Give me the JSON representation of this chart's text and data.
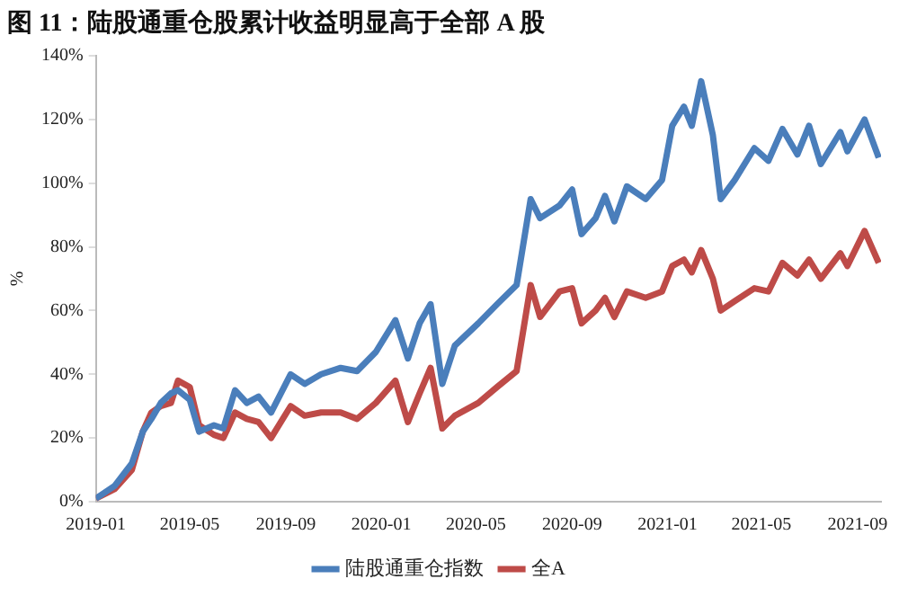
{
  "chart_data": {
    "type": "line",
    "title": "图 11：陆股通重仓股累计收益明显高于全部 A 股",
    "ylabel": "%",
    "x": [
      "2019-01-01",
      "2019-01-25",
      "2019-02-16",
      "2019-03-02",
      "2019-03-13",
      "2019-03-25",
      "2019-04-07",
      "2019-04-16",
      "2019-05-01",
      "2019-05-13",
      "2019-06-01",
      "2019-06-13",
      "2019-06-28",
      "2019-07-13",
      "2019-07-28",
      "2019-08-13",
      "2019-09-07",
      "2019-09-25",
      "2019-10-16",
      "2019-11-10",
      "2019-12-01",
      "2019-12-25",
      "2020-01-19",
      "2020-02-04",
      "2020-02-19",
      "2020-03-04",
      "2020-03-19",
      "2020-04-04",
      "2020-05-04",
      "2020-05-28",
      "2020-06-22",
      "2020-07-10",
      "2020-07-22",
      "2020-08-16",
      "2020-09-01",
      "2020-09-13",
      "2020-10-01",
      "2020-10-13",
      "2020-10-25",
      "2020-11-10",
      "2020-12-04",
      "2020-12-25",
      "2021-01-07",
      "2021-01-22",
      "2021-02-01",
      "2021-02-13",
      "2021-02-28",
      "2021-03-10",
      "2021-03-28",
      "2021-04-22",
      "2021-05-10",
      "2021-05-28",
      "2021-06-16",
      "2021-07-01",
      "2021-07-16",
      "2021-08-10",
      "2021-08-19",
      "2021-09-10",
      "2021-09-28"
    ],
    "series": [
      {
        "name": "陆股通重仓指数",
        "color": "#4a7ebb",
        "values": [
          1,
          5,
          12,
          22,
          26,
          31,
          34,
          35,
          32,
          22,
          24,
          23,
          35,
          31,
          33,
          28,
          40,
          37,
          40,
          42,
          41,
          47,
          57,
          45,
          56,
          62,
          37,
          49,
          56,
          62,
          68,
          95,
          89,
          93,
          98,
          84,
          89,
          96,
          88,
          99,
          95,
          101,
          118,
          124,
          118,
          132,
          115,
          95,
          101,
          111,
          107,
          117,
          109,
          118,
          106,
          116,
          110,
          120,
          108
        ]
      },
      {
        "name": "全A",
        "color": "#be4b48",
        "values": [
          1,
          4,
          10,
          22,
          28,
          30,
          31,
          38,
          36,
          24,
          21,
          20,
          28,
          26,
          25,
          20,
          30,
          27,
          28,
          28,
          26,
          31,
          38,
          25,
          34,
          42,
          23,
          27,
          31,
          36,
          41,
          68,
          58,
          66,
          67,
          56,
          60,
          64,
          58,
          66,
          64,
          66,
          74,
          76,
          72,
          79,
          70,
          60,
          63,
          67,
          66,
          75,
          71,
          76,
          70,
          78,
          74,
          85,
          75
        ]
      }
    ],
    "xlim": [
      "2019-01-01",
      "2021-10-01"
    ],
    "xticks": [
      "2019-01",
      "2019-05",
      "2019-09",
      "2020-01",
      "2020-05",
      "2020-09",
      "2021-01",
      "2021-05",
      "2021-09"
    ],
    "ylim": [
      0,
      140
    ],
    "yticks": [
      {
        "value": 0,
        "label": "0%"
      },
      {
        "value": 20,
        "label": "20%"
      },
      {
        "value": 40,
        "label": "40%"
      },
      {
        "value": 60,
        "label": "60%"
      },
      {
        "value": 80,
        "label": "80%"
      },
      {
        "value": 100,
        "label": "100%"
      },
      {
        "value": 120,
        "label": "120%"
      },
      {
        "value": 140,
        "label": "140%"
      }
    ],
    "grid": false,
    "legend": "bottom",
    "marker": "none",
    "line_style": "solid"
  }
}
